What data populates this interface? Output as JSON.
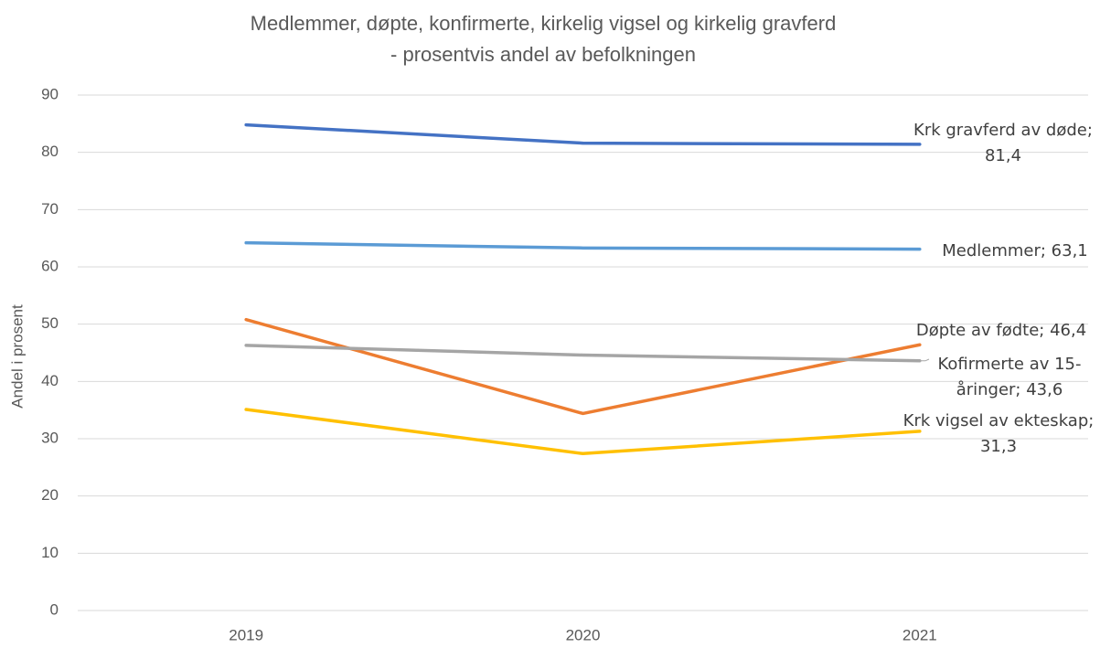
{
  "chart_data": {
    "type": "line",
    "title": [
      "Medlemmer, døpte, konfirmerte, kirkelig vigsel og kirkelig gravferd",
      "- prosentvis andel av befolkningen"
    ],
    "y_label": "Andel i prosent",
    "categories": [
      "2019",
      "2020",
      "2021"
    ],
    "series": [
      {
        "name": "Krk gravferd av døde",
        "color": "#4472c4",
        "values": [
          84.8,
          81.6,
          81.4
        ],
        "value_labels": [
          null,
          null,
          "Krk gravferd av døde; 81,4"
        ]
      },
      {
        "name": "Medlemmer",
        "color": "#5b9bd5",
        "values": [
          64.2,
          63.3,
          63.1
        ],
        "value_labels": [
          null,
          null,
          "Medlemmer; 63,1"
        ]
      },
      {
        "name": "Døpte av fødte",
        "color": "#ed7d31",
        "values": [
          50.8,
          34.4,
          46.4
        ],
        "value_labels": [
          null,
          null,
          "Døpte av fødte; 46,4"
        ]
      },
      {
        "name": "Kofirmerte av 15-åringer",
        "color": "#a5a5a5",
        "values": [
          46.3,
          44.6,
          43.6
        ],
        "value_labels": [
          null,
          null,
          "Kofirmerte av 15-åringer; 43,6"
        ]
      },
      {
        "name": "Krk vigsel av ekteskap",
        "color": "#ffc000",
        "values": [
          35.1,
          27.4,
          31.3
        ],
        "value_labels": [
          null,
          null,
          "Krk vigsel av ekteskap; 31,3"
        ]
      }
    ],
    "ylim": [
      0,
      90
    ],
    "yticks": [
      0,
      10,
      20,
      30,
      40,
      50,
      60,
      70,
      80,
      90
    ],
    "grid": true
  }
}
